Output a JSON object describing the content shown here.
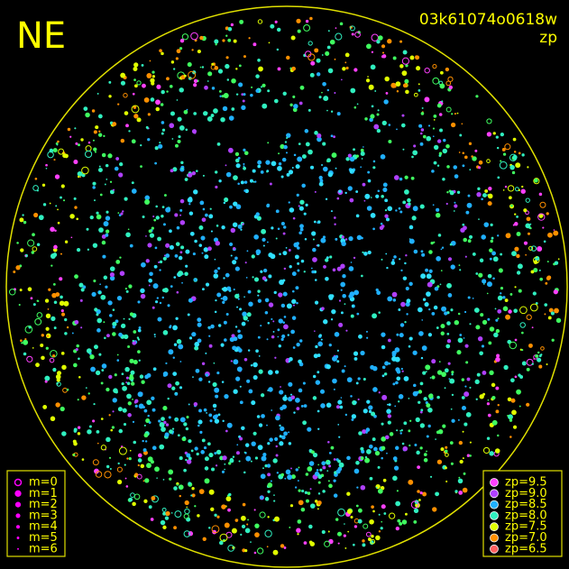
{
  "header": {
    "direction": "NE",
    "id": "03k61074o0618w",
    "mode": "zp"
  },
  "legend_m": {
    "color": "#ff00ff",
    "labels": [
      "m=0",
      "m=1",
      "m=2",
      "m=3",
      "m=4",
      "m=5",
      "m=6"
    ]
  },
  "legend_zp": [
    {
      "label": "zp=9.5",
      "color": "#ff40ff"
    },
    {
      "label": "zp=9.0",
      "color": "#b040ff"
    },
    {
      "label": "zp=8.5",
      "color": "#20b0ff"
    },
    {
      "label": "zp=8.0",
      "color": "#30f0c0"
    },
    {
      "label": "zp=7.5",
      "color": "#e0ff00"
    },
    {
      "label": "zp=7.0",
      "color": "#ff9000"
    },
    {
      "label": "zp=6.5",
      "color": "#ff6060"
    }
  ]
}
